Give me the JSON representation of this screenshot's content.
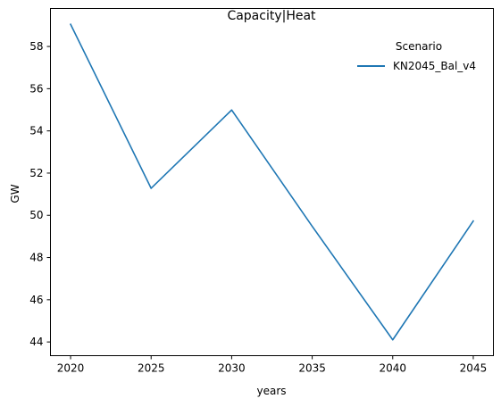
{
  "chart_data": {
    "type": "line",
    "title": "Capacity|Heat",
    "xlabel": "years",
    "ylabel": "GW",
    "x": [
      2020,
      2025,
      2030,
      2035,
      2040,
      2045
    ],
    "x_ticks": [
      2020,
      2025,
      2030,
      2035,
      2040,
      2045
    ],
    "y_ticks": [
      44,
      46,
      48,
      50,
      52,
      54,
      56,
      58
    ],
    "xlim": [
      2018.75,
      2046.25
    ],
    "ylim": [
      43.35,
      59.8
    ],
    "grid": false,
    "legend": {
      "title": "Scenario",
      "placement": "top-right"
    },
    "series": [
      {
        "name": "KN2045_Bal_v4",
        "color": "#1f77b4",
        "values": [
          59.05,
          51.28,
          54.99,
          49.48,
          44.1,
          49.73
        ]
      }
    ]
  }
}
